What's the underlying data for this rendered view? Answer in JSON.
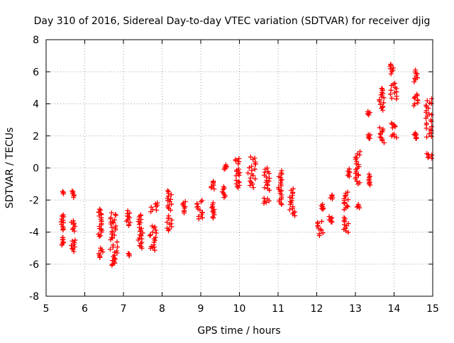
{
  "chart_data": {
    "type": "scatter",
    "title": "Day 310 of 2016, Sidereal Day-to-day VTEC variation (SDTVAR) for receiver djig",
    "xlabel": "GPS time / hours",
    "ylabel": "SDTVAR / TECUs",
    "xlim": [
      5,
      15
    ],
    "ylim": [
      -8,
      8
    ],
    "xticks": [
      "5",
      "6",
      "7",
      "8",
      "9",
      "10",
      "11",
      "12",
      "13",
      "14",
      "15"
    ],
    "yticks": [
      "-8",
      "-6",
      "-4",
      "-2",
      "0",
      "2",
      "4",
      "6",
      "8"
    ],
    "grid": true,
    "marker": "+",
    "color": "#ff0000",
    "clusters": [
      {
        "x0": 5.42,
        "x1": 5.46,
        "y0": -1.6,
        "y1": -1.5
      },
      {
        "x0": 5.38,
        "x1": 5.46,
        "y0": -3.9,
        "y1": -2.9
      },
      {
        "x0": 5.4,
        "x1": 5.45,
        "y0": -4.8,
        "y1": -4.3
      },
      {
        "x0": 5.65,
        "x1": 5.75,
        "y0": -1.8,
        "y1": -1.4
      },
      {
        "x0": 5.65,
        "x1": 5.77,
        "y0": -3.9,
        "y1": -3.3
      },
      {
        "x0": 5.65,
        "x1": 5.75,
        "y0": -5.2,
        "y1": -4.5
      },
      {
        "x0": 6.35,
        "x1": 6.47,
        "y0": -3.0,
        "y1": -2.6
      },
      {
        "x0": 6.35,
        "x1": 6.47,
        "y0": -4.3,
        "y1": -3.1
      },
      {
        "x0": 6.35,
        "x1": 6.47,
        "y0": -5.6,
        "y1": -5.0
      },
      {
        "x0": 6.65,
        "x1": 6.85,
        "y0": -3.4,
        "y1": -2.8
      },
      {
        "x0": 6.65,
        "x1": 6.85,
        "y0": -4.6,
        "y1": -3.4
      },
      {
        "x0": 6.65,
        "x1": 6.85,
        "y0": -5.7,
        "y1": -4.8
      },
      {
        "x0": 6.68,
        "x1": 6.8,
        "y0": -6.1,
        "y1": -5.8
      },
      {
        "x0": 7.08,
        "x1": 7.18,
        "y0": -3.6,
        "y1": -2.7
      },
      {
        "x0": 7.12,
        "x1": 7.16,
        "y0": -5.5,
        "y1": -5.3
      },
      {
        "x0": 7.38,
        "x1": 7.5,
        "y0": -3.5,
        "y1": -2.9
      },
      {
        "x0": 7.38,
        "x1": 7.5,
        "y0": -5.0,
        "y1": -3.7
      },
      {
        "x0": 7.7,
        "x1": 7.88,
        "y0": -2.7,
        "y1": -2.2
      },
      {
        "x0": 7.68,
        "x1": 7.85,
        "y0": -4.6,
        "y1": -3.6
      },
      {
        "x0": 7.7,
        "x1": 7.85,
        "y0": -5.1,
        "y1": -4.8
      },
      {
        "x0": 8.14,
        "x1": 8.26,
        "y0": -2.6,
        "y1": -1.4
      },
      {
        "x0": 8.12,
        "x1": 8.26,
        "y0": -3.9,
        "y1": -3.0
      },
      {
        "x0": 8.52,
        "x1": 8.62,
        "y0": -2.8,
        "y1": -2.1
      },
      {
        "x0": 8.88,
        "x1": 9.05,
        "y0": -3.2,
        "y1": -2.0
      },
      {
        "x0": 9.25,
        "x1": 9.35,
        "y0": -1.3,
        "y1": -0.8
      },
      {
        "x0": 9.28,
        "x1": 9.35,
        "y0": -3.1,
        "y1": -2.2
      },
      {
        "x0": 9.55,
        "x1": 9.65,
        "y0": -1.8,
        "y1": -1.2
      },
      {
        "x0": 9.6,
        "x1": 9.68,
        "y0": -0.1,
        "y1": 0.2
      },
      {
        "x0": 9.9,
        "x1": 10.02,
        "y0": -1.2,
        "y1": -0.8
      },
      {
        "x0": 9.9,
        "x1": 10.02,
        "y0": -0.5,
        "y1": -0.1
      },
      {
        "x0": 9.88,
        "x1": 10.0,
        "y0": 0.3,
        "y1": 0.6
      },
      {
        "x0": 10.22,
        "x1": 10.42,
        "y0": -1.2,
        "y1": 0.7
      },
      {
        "x0": 10.62,
        "x1": 10.78,
        "y0": -1.4,
        "y1": 0.0
      },
      {
        "x0": 10.62,
        "x1": 10.78,
        "y0": -2.2,
        "y1": -1.9
      },
      {
        "x0": 11.0,
        "x1": 11.1,
        "y0": -2.3,
        "y1": -0.2
      },
      {
        "x0": 11.3,
        "x1": 11.45,
        "y0": -3.0,
        "y1": -1.3
      },
      {
        "x0": 12.02,
        "x1": 12.18,
        "y0": -4.2,
        "y1": -3.3
      },
      {
        "x0": 12.12,
        "x1": 12.18,
        "y0": -2.6,
        "y1": -2.3
      },
      {
        "x0": 12.35,
        "x1": 12.42,
        "y0": -1.9,
        "y1": -1.7
      },
      {
        "x0": 12.32,
        "x1": 12.42,
        "y0": -3.4,
        "y1": -3.0
      },
      {
        "x0": 12.7,
        "x1": 12.82,
        "y0": -2.6,
        "y1": -1.5
      },
      {
        "x0": 12.68,
        "x1": 12.82,
        "y0": -4.0,
        "y1": -3.1
      },
      {
        "x0": 12.8,
        "x1": 12.85,
        "y0": -0.5,
        "y1": -0.1
      },
      {
        "x0": 13.02,
        "x1": 13.12,
        "y0": -2.5,
        "y1": -2.3
      },
      {
        "x0": 13.0,
        "x1": 13.12,
        "y0": -1.0,
        "y1": 1.0
      },
      {
        "x0": 13.32,
        "x1": 13.38,
        "y0": -1.1,
        "y1": -0.4
      },
      {
        "x0": 13.3,
        "x1": 13.38,
        "y0": 1.8,
        "y1": 2.1
      },
      {
        "x0": 13.32,
        "x1": 13.38,
        "y0": 3.3,
        "y1": 3.5
      },
      {
        "x0": 13.62,
        "x1": 13.75,
        "y0": 1.6,
        "y1": 2.5
      },
      {
        "x0": 13.62,
        "x1": 13.75,
        "y0": 3.6,
        "y1": 5.0
      },
      {
        "x0": 13.9,
        "x1": 14.08,
        "y0": 1.9,
        "y1": 2.1
      },
      {
        "x0": 13.92,
        "x1": 14.05,
        "y0": 2.5,
        "y1": 2.8
      },
      {
        "x0": 13.9,
        "x1": 14.08,
        "y0": 4.3,
        "y1": 5.3
      },
      {
        "x0": 13.9,
        "x1": 14.08,
        "y0": 5.9,
        "y1": 6.5
      },
      {
        "x0": 14.48,
        "x1": 14.62,
        "y0": 1.8,
        "y1": 2.2
      },
      {
        "x0": 14.48,
        "x1": 14.62,
        "y0": 3.9,
        "y1": 4.6
      },
      {
        "x0": 14.5,
        "x1": 14.62,
        "y0": 5.4,
        "y1": 6.1
      },
      {
        "x0": 14.82,
        "x1": 14.98,
        "y0": 0.6,
        "y1": 0.9
      },
      {
        "x0": 14.82,
        "x1": 14.98,
        "y0": 1.9,
        "y1": 4.3
      }
    ]
  }
}
